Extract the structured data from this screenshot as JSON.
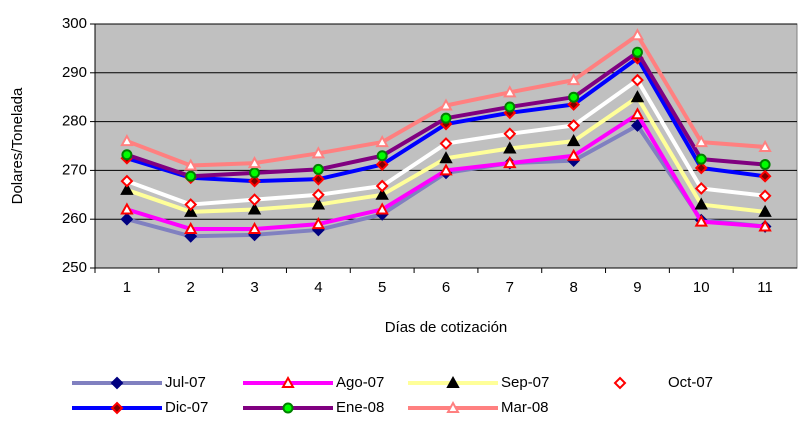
{
  "chart_data": {
    "type": "line",
    "x_label": "Días de cotización",
    "y_label": "Dolares/Tonelada",
    "categories": [
      "1",
      "2",
      "3",
      "4",
      "5",
      "6",
      "7",
      "8",
      "9",
      "10",
      "11"
    ],
    "ylim": [
      250,
      300
    ],
    "yticks": [
      250,
      260,
      270,
      280,
      290,
      300
    ],
    "grid": true,
    "background": "#c0c0c0",
    "series": [
      {
        "name": "Jul-07",
        "color": "#8080c0",
        "marker": "diamond",
        "marker_fill": "#000080",
        "marker_stroke": "#000080",
        "values": [
          260,
          256.5,
          256.8,
          257.8,
          261,
          269.5,
          271.5,
          272,
          279.2,
          259.8,
          258.5
        ]
      },
      {
        "name": "Ago-07",
        "color": "#ff00ff",
        "marker": "triangle",
        "marker_fill": "#ffffff",
        "marker_stroke": "#ff0000",
        "values": [
          262,
          258,
          258,
          259,
          262,
          270,
          271.5,
          273,
          281.5,
          259.5,
          258.5
        ]
      },
      {
        "name": "Sep-07",
        "color": "#ffff99",
        "marker": "triangle",
        "marker_fill": "#000000",
        "marker_stroke": "#000000",
        "values": [
          266,
          261.5,
          262,
          263,
          265,
          272.5,
          274.5,
          276,
          285,
          263,
          261.5
        ]
      },
      {
        "name": "Oct-07",
        "color": "#ffffff",
        "marker": "diamond",
        "marker_fill": "#ffffff",
        "marker_stroke": "#ff0000",
        "values": [
          267.8,
          263,
          264,
          265,
          266.8,
          275.5,
          277.5,
          279.2,
          288.5,
          266.3,
          264.8
        ]
      },
      {
        "name": "Dic-07",
        "color": "#0000ff",
        "marker": "diamond",
        "marker_fill": "#800000",
        "marker_stroke": "#ff0000",
        "values": [
          272.5,
          268.5,
          267.8,
          268.2,
          271.2,
          279.5,
          281.8,
          283.5,
          293,
          270.5,
          268.8
        ]
      },
      {
        "name": "Ene-08",
        "color": "#800080",
        "marker": "circle",
        "marker_fill": "#00ff00",
        "marker_stroke": "#008000",
        "values": [
          273.2,
          268.8,
          269.5,
          270.2,
          273,
          280.7,
          283,
          285,
          294.2,
          272.3,
          271.2
        ]
      },
      {
        "name": "Mar-08",
        "color": "#ff8080",
        "marker": "triangle",
        "marker_fill": "#ffffff",
        "marker_stroke": "#ff8080",
        "values": [
          276,
          271,
          271.5,
          273.5,
          275.8,
          283.3,
          286,
          288.5,
          297.7,
          275.8,
          274.8
        ]
      }
    ]
  }
}
